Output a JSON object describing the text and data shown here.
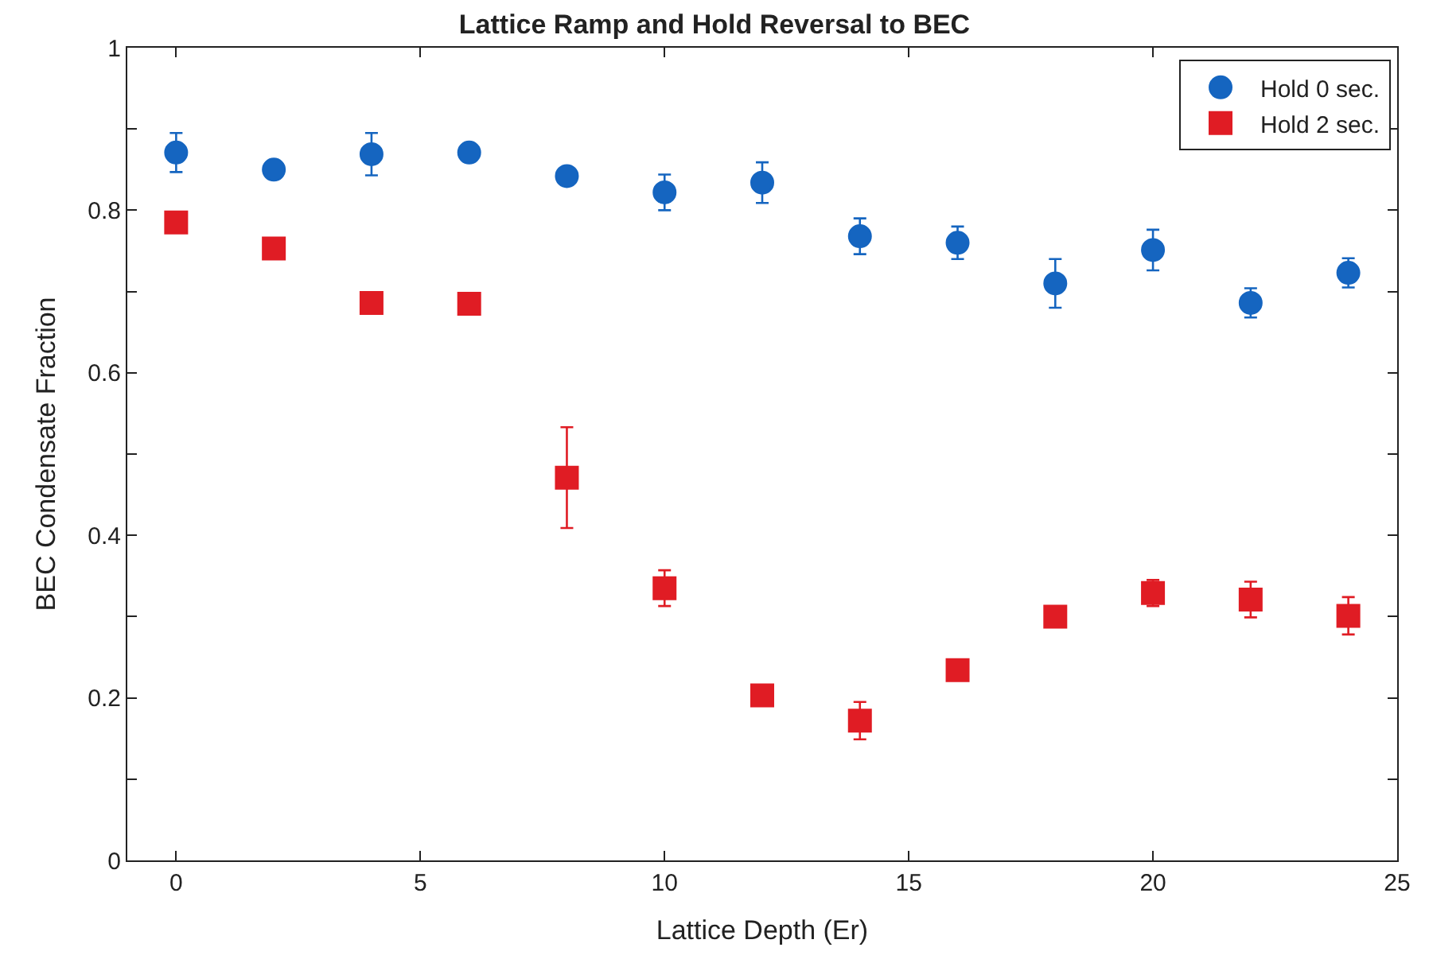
{
  "chart_data": {
    "type": "scatter",
    "title": "Lattice Ramp and Hold Reversal to BEC",
    "xlabel": "Lattice Depth (Er)",
    "ylabel": "BEC Condensate Fraction",
    "x": [
      0,
      2,
      4,
      6,
      8,
      10,
      12,
      14,
      16,
      18,
      20,
      22,
      24
    ],
    "series": [
      {
        "name": "Hold 0 sec.",
        "color": "#1565c0",
        "marker": "circle",
        "values": [
          0.871,
          0.85,
          0.869,
          0.871,
          0.842,
          0.822,
          0.834,
          0.768,
          0.76,
          0.71,
          0.751,
          0.686,
          0.723
        ],
        "errors": [
          0.024,
          null,
          0.026,
          null,
          null,
          0.022,
          0.025,
          0.022,
          0.02,
          0.03,
          0.025,
          0.018,
          0.018
        ]
      },
      {
        "name": "Hold 2 sec.",
        "color": "#e01c24",
        "marker": "square",
        "values": [
          0.785,
          0.753,
          0.686,
          0.685,
          0.471,
          0.335,
          0.203,
          0.172,
          0.234,
          0.3,
          0.329,
          0.321,
          0.301
        ],
        "errors": [
          null,
          null,
          null,
          null,
          0.062,
          0.022,
          null,
          0.023,
          null,
          null,
          0.016,
          0.022,
          0.023
        ]
      }
    ],
    "xlim": [
      -1,
      25
    ],
    "xticks": [
      0,
      5,
      10,
      15,
      20,
      25
    ],
    "ylim": [
      0,
      1
    ],
    "yticks": [
      0,
      {
        "value": 0.1,
        "label": null
      },
      0.2,
      {
        "value": 0.3,
        "label": null
      },
      0.4,
      {
        "value": 0.5,
        "label": null
      },
      0.6,
      {
        "value": 0.7,
        "label": null
      },
      0.8,
      {
        "value": 0.9,
        "label": null
      },
      1
    ],
    "legend": "top right"
  }
}
